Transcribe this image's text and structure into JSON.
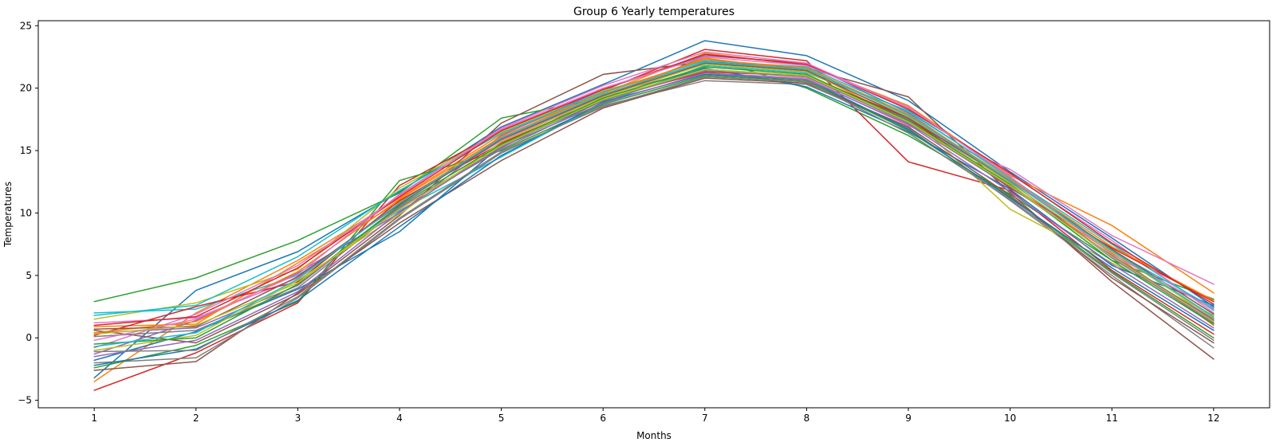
{
  "chart_data": {
    "type": "line",
    "title": "Group 6 Yearly temperatures",
    "xlabel": "Months",
    "ylabel": "Temperatures",
    "x": [
      1,
      2,
      3,
      4,
      5,
      6,
      7,
      8,
      9,
      10,
      11,
      12
    ],
    "xlim": [
      0.45,
      12.55
    ],
    "ylim": [
      -5.6,
      25.4
    ],
    "xticks": [
      1,
      2,
      3,
      4,
      5,
      6,
      7,
      8,
      9,
      10,
      11,
      12
    ],
    "yticks": [
      -5,
      0,
      5,
      10,
      15,
      20,
      25
    ],
    "grid": false,
    "legend": false,
    "colors": [
      "#1f77b4",
      "#ff7f0e",
      "#2ca02c",
      "#d62728",
      "#9467bd",
      "#8c564b",
      "#e377c2",
      "#7f7f7f",
      "#bcbd22",
      "#17becf"
    ],
    "series": [
      {
        "values": [
          -3.2,
          3.8,
          6.9,
          11.7,
          16.9,
          20.3,
          23.8,
          22.6,
          19.0,
          13.3,
          8.0,
          2.5
        ]
      },
      {
        "values": [
          -3.5,
          2.0,
          6.2,
          11.2,
          16.3,
          19.6,
          22.8,
          21.8,
          18.6,
          13.0,
          9.0,
          3.6
        ]
      },
      {
        "values": [
          2.9,
          4.8,
          7.8,
          11.6,
          17.6,
          19.2,
          22.5,
          20.0,
          16.2,
          11.5,
          6.2,
          3.1
        ]
      },
      {
        "values": [
          -4.2,
          -1.2,
          2.8,
          12.2,
          16.6,
          19.8,
          23.1,
          22.2,
          14.1,
          11.8,
          5.4,
          0.3
        ]
      },
      {
        "values": [
          0.4,
          0.8,
          4.2,
          10.5,
          15.2,
          19.5,
          21.5,
          21.0,
          17.5,
          12.5,
          6.5,
          1.5
        ]
      },
      {
        "values": [
          -2.6,
          -1.9,
          3.6,
          9.8,
          17.2,
          21.1,
          22.1,
          21.6,
          19.3,
          11.6,
          4.5,
          -1.7
        ]
      },
      {
        "values": [
          1.2,
          1.6,
          4.8,
          10.8,
          15.8,
          19.3,
          21.2,
          20.8,
          17.0,
          13.5,
          8.2,
          4.3
        ]
      },
      {
        "values": [
          -2.0,
          -1.6,
          3.2,
          9.5,
          14.8,
          18.6,
          20.6,
          20.3,
          16.8,
          11.0,
          5.0,
          -0.8
        ]
      },
      {
        "values": [
          1.5,
          2.8,
          5.5,
          12.0,
          16.5,
          19.8,
          22.0,
          21.5,
          17.8,
          10.3,
          6.0,
          1.8
        ]
      },
      {
        "values": [
          2.0,
          2.3,
          5.0,
          10.2,
          14.5,
          18.8,
          21.8,
          21.2,
          18.2,
          12.8,
          7.5,
          2.2
        ]
      },
      {
        "values": [
          -1.8,
          0.5,
          3.9,
          8.5,
          15.4,
          19.0,
          21.6,
          20.1,
          16.5,
          11.9,
          5.8,
          2.6
        ]
      },
      {
        "values": [
          0.9,
          1.1,
          6.0,
          10.9,
          16.0,
          19.4,
          22.4,
          21.4,
          17.3,
          12.2,
          6.8,
          1.0
        ]
      },
      {
        "values": [
          -2.4,
          -0.6,
          2.9,
          12.6,
          15.0,
          18.7,
          21.0,
          20.6,
          16.6,
          11.3,
          5.3,
          0.0
        ]
      },
      {
        "values": [
          0.2,
          2.5,
          4.5,
          11.0,
          15.6,
          19.1,
          21.3,
          21.0,
          17.6,
          12.0,
          7.2,
          2.9
        ]
      },
      {
        "values": [
          -1.3,
          1.4,
          5.2,
          10.0,
          16.2,
          19.9,
          22.6,
          22.0,
          18.0,
          12.5,
          6.4,
          1.2
        ]
      },
      {
        "values": [
          0.6,
          -0.4,
          3.5,
          9.2,
          14.2,
          18.4,
          20.8,
          20.4,
          16.9,
          11.4,
          4.8,
          -0.4
        ]
      },
      {
        "values": [
          -0.8,
          1.9,
          5.8,
          11.4,
          16.8,
          20.2,
          22.9,
          22.0,
          18.4,
          13.1,
          7.8,
          2.0
        ]
      },
      {
        "values": [
          0.1,
          0.6,
          4.0,
          10.4,
          15.1,
          19.0,
          21.4,
          20.9,
          17.2,
          12.1,
          6.6,
          1.4
        ]
      },
      {
        "values": [
          -1.0,
          0.2,
          4.6,
          9.9,
          15.7,
          19.3,
          21.9,
          21.3,
          17.7,
          12.4,
          6.9,
          1.6
        ]
      },
      {
        "values": [
          1.8,
          2.6,
          6.5,
          11.8,
          16.4,
          19.7,
          22.2,
          21.7,
          18.1,
          12.9,
          7.0,
          2.4
        ]
      },
      {
        "values": [
          -2.2,
          -0.9,
          3.0,
          8.9,
          14.6,
          18.9,
          21.1,
          20.7,
          16.7,
          11.2,
          5.6,
          0.6
        ]
      },
      {
        "values": [
          0.4,
          1.3,
          5.3,
          11.1,
          16.1,
          19.6,
          22.3,
          21.6,
          17.9,
          12.7,
          7.3,
          3.0
        ]
      },
      {
        "values": [
          -0.5,
          0.0,
          4.3,
          10.6,
          15.5,
          19.2,
          21.7,
          21.1,
          17.4,
          12.3,
          6.2,
          1.1
        ]
      },
      {
        "values": [
          1.0,
          1.7,
          5.6,
          11.3,
          16.6,
          19.9,
          22.7,
          21.9,
          18.3,
          13.2,
          7.6,
          2.7
        ]
      },
      {
        "values": [
          -1.5,
          -0.2,
          3.7,
          10.1,
          15.3,
          18.8,
          21.2,
          20.7,
          17.1,
          11.7,
          5.9,
          0.8
        ]
      },
      {
        "values": [
          0.7,
          0.9,
          4.9,
          10.7,
          15.9,
          19.4,
          22.0,
          21.4,
          17.6,
          12.6,
          7.1,
          1.9
        ]
      },
      {
        "values": [
          -0.2,
          1.5,
          5.1,
          11.5,
          16.7,
          20.0,
          22.5,
          21.8,
          18.5,
          12.9,
          6.7,
          2.3
        ]
      },
      {
        "values": [
          -1.1,
          -1.0,
          3.3,
          9.6,
          14.9,
          18.5,
          20.9,
          20.5,
          16.4,
          11.1,
          5.2,
          -0.2
        ]
      },
      {
        "values": [
          0.3,
          1.0,
          4.4,
          10.3,
          15.4,
          19.1,
          21.5,
          21.0,
          17.3,
          12.2,
          6.5,
          1.3
        ]
      },
      {
        "values": [
          -0.7,
          0.4,
          4.7,
          10.8,
          16.0,
          19.5,
          22.1,
          21.5,
          17.8,
          12.6,
          7.0,
          1.7
        ]
      }
    ]
  }
}
